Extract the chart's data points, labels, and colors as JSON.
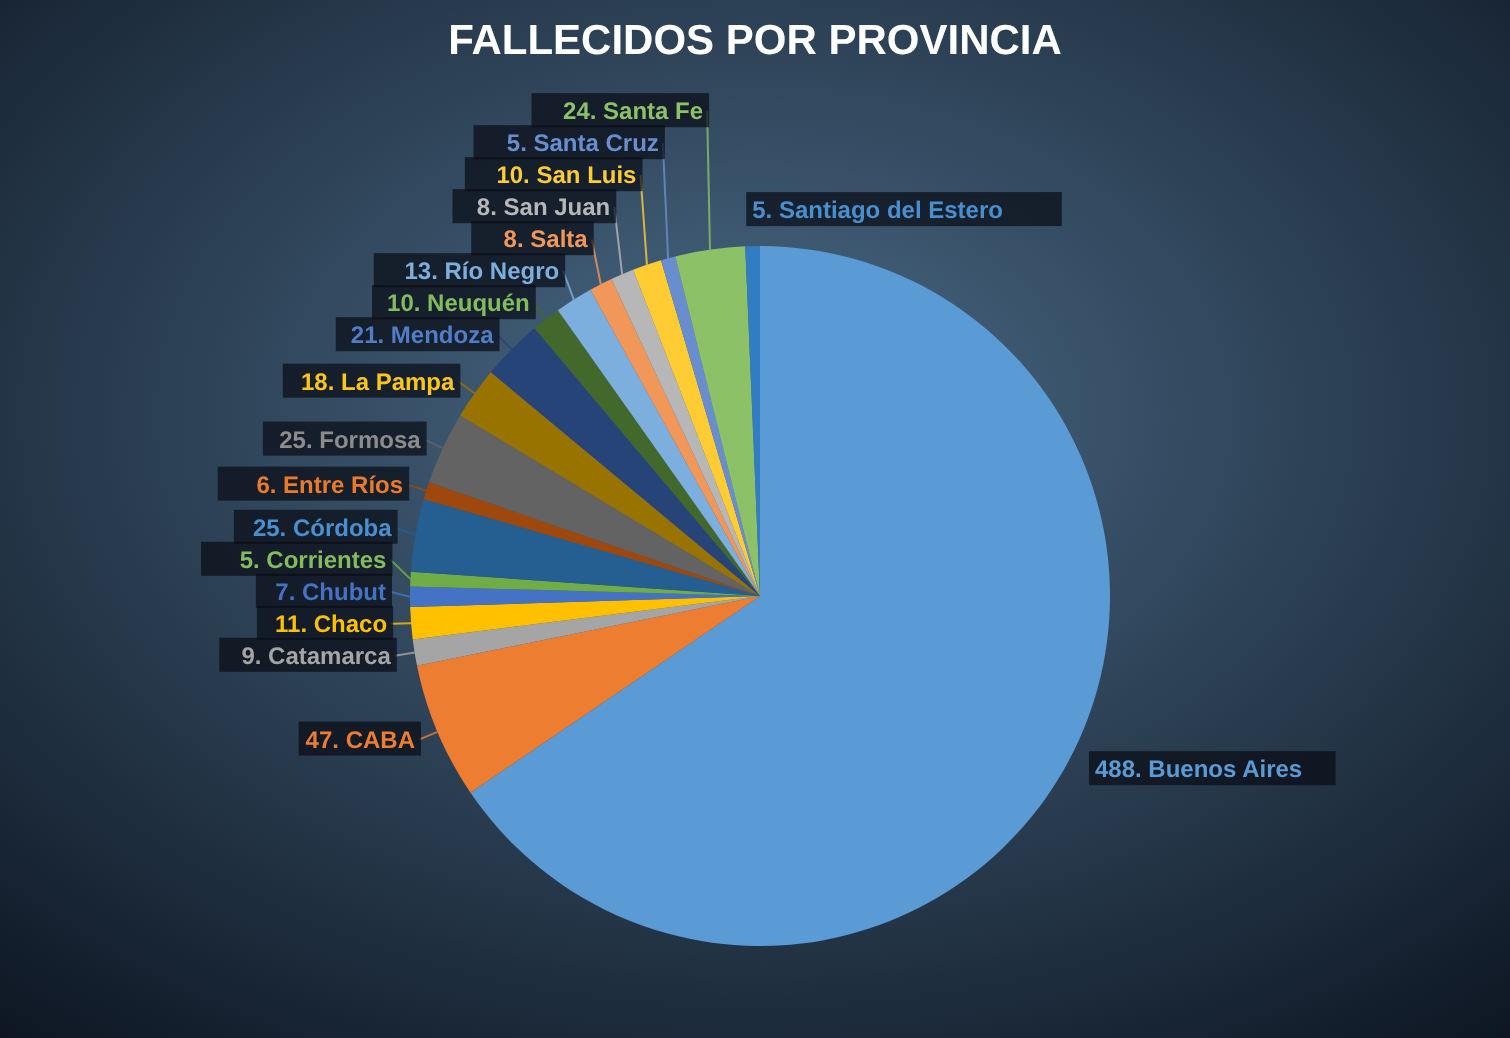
{
  "chart_data": {
    "type": "pie",
    "title": "FALLECIDOS POR PROVINCIA",
    "categories": [
      "Buenos Aires",
      "CABA",
      "Catamarca",
      "Chaco",
      "Chubut",
      "Corrientes",
      "Córdoba",
      "Entre Ríos",
      "Formosa",
      "La Pampa",
      "Mendoza",
      "Neuquén",
      "Río Negro",
      "Salta",
      "San Juan",
      "San Luis",
      "Santa Cruz",
      "Santa Fe",
      "Santiago del Estero"
    ],
    "values": [
      488,
      47,
      9,
      11,
      7,
      5,
      25,
      6,
      25,
      18,
      21,
      10,
      13,
      8,
      8,
      10,
      5,
      24,
      5
    ],
    "value_labels": [
      "488.",
      "47.",
      "9.",
      "11.",
      "7.",
      "5.",
      "25.",
      "6.",
      "25.",
      "18.",
      "21.",
      "10.",
      "13.",
      "8.",
      "8.",
      "10.",
      "5.",
      "24.",
      "5."
    ],
    "colors": [
      "#5b9bd5",
      "#ed7d31",
      "#a5a5a5",
      "#ffc000",
      "#4472c4",
      "#70ad47",
      "#255e91",
      "#9e480e",
      "#636363",
      "#997300",
      "#264478",
      "#43682b",
      "#7cafdd",
      "#f1975a",
      "#b7b7b7",
      "#ffcd33",
      "#698ed0",
      "#8cc168",
      "#327dc2"
    ]
  }
}
